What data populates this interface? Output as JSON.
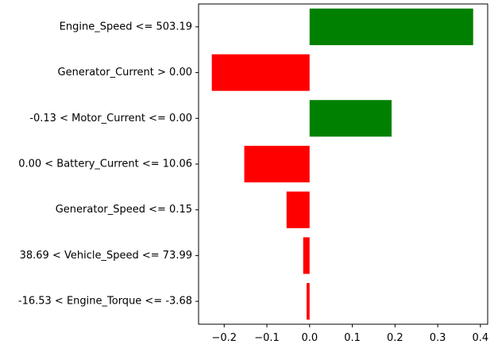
{
  "chart_data": {
    "type": "bar",
    "orientation": "horizontal",
    "title": "",
    "xlabel": "",
    "ylabel": "",
    "categories": [
      "Engine_Speed <= 503.19",
      "Generator_Current > 0.00",
      "-0.13 < Motor_Current <= 0.00",
      "0.00 < Battery_Current <= 10.06",
      "Generator_Speed <= 0.15",
      "38.69 < Vehicle_Speed <= 73.99",
      "-16.53 < Engine_Torque <= -3.68"
    ],
    "values": [
      0.383,
      -0.229,
      0.192,
      -0.153,
      -0.054,
      -0.015,
      -0.007
    ],
    "xlim": [
      -0.26,
      0.417
    ],
    "xticks": [
      -0.2,
      -0.1,
      0.0,
      0.1,
      0.2,
      0.3,
      0.4
    ],
    "xtick_labels": [
      "−0.2",
      "−0.1",
      "0.0",
      "0.1",
      "0.2",
      "0.3",
      "0.4"
    ],
    "grid": false,
    "legend": null,
    "colors": {
      "positive": "#008000",
      "negative": "#ff0000"
    }
  }
}
